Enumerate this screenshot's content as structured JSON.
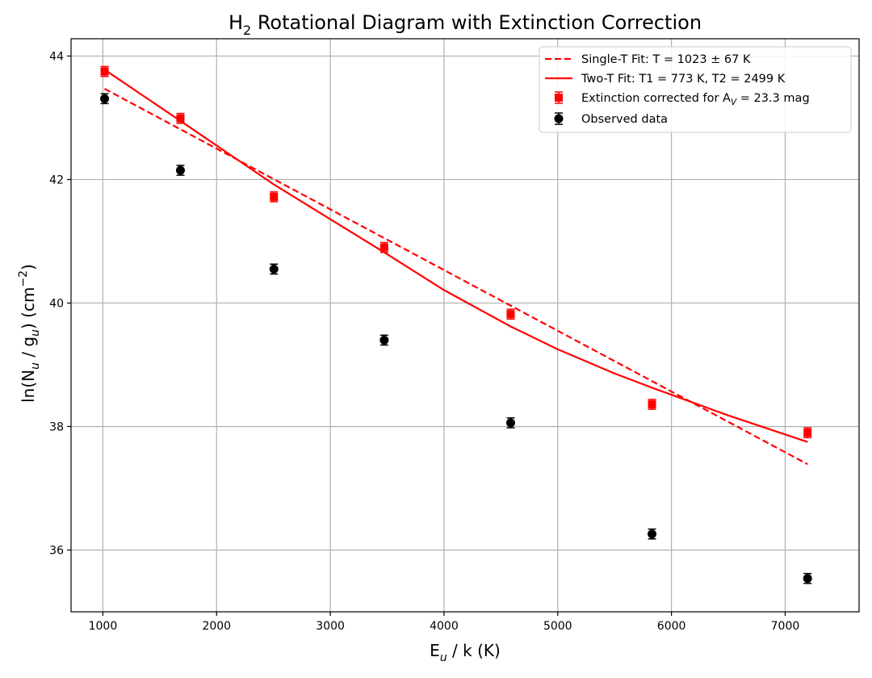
{
  "chart_data": {
    "type": "scatter",
    "title_main": "H",
    "title_sub": "2",
    "title_rest": " Rotational Diagram with Extinction Correction",
    "xlabel_main": "E",
    "xlabel_sub": "u",
    "xlabel_rest": " / k (K)",
    "ylabel_pre": "ln(N",
    "ylabel_sub1": "u",
    "ylabel_mid": " / g",
    "ylabel_sub2": "u",
    "ylabel_post": ") (cm",
    "ylabel_sup": "−2",
    "ylabel_end": ")",
    "xlim": [
      720,
      7650
    ],
    "ylim": [
      35.0,
      44.28
    ],
    "xticks": [
      1000,
      2000,
      3000,
      4000,
      5000,
      6000,
      7000
    ],
    "yticks": [
      36,
      38,
      40,
      42,
      44
    ],
    "grid": true,
    "legend_position": "top-right",
    "legend": {
      "single_fit": "Single-T Fit: T = 1023 ± 67 K",
      "two_fit": "Two-T Fit: T1 = 773 K, T2 = 2499 K",
      "corrected_pre": "Extinction corrected for A",
      "corrected_sub": "V",
      "corrected_post": " = 23.3 mag",
      "observed": "Observed data"
    },
    "series": [
      {
        "name": "Observed data",
        "color": "#000000",
        "marker": "circle",
        "x": [
          1015,
          1682,
          2504,
          3474,
          4586,
          5829,
          7197
        ],
        "y": [
          43.31,
          42.15,
          40.55,
          39.4,
          38.06,
          36.26,
          35.54
        ],
        "yerr": 0.08
      },
      {
        "name": "Extinction corrected",
        "color": "#ff0000",
        "marker": "square",
        "x": [
          1015,
          1682,
          2504,
          3474,
          4586,
          5829,
          7197
        ],
        "y": [
          43.75,
          42.99,
          41.72,
          40.9,
          39.82,
          38.36,
          37.9
        ],
        "yerr": 0.08
      },
      {
        "name": "Single-T Fit",
        "color": "#ff0000",
        "style": "dashed",
        "x": [
          1015,
          7197
        ],
        "y": [
          43.47,
          37.39
        ]
      },
      {
        "name": "Two-T Fit",
        "color": "#ff0000",
        "style": "solid",
        "x": [
          1015,
          1682,
          2504,
          3474,
          4000,
          4586,
          5000,
          5500,
          5829,
          6500,
          7197
        ],
        "y": [
          43.78,
          42.95,
          41.92,
          40.82,
          40.21,
          39.62,
          39.25,
          38.86,
          38.63,
          38.18,
          37.75
        ]
      }
    ]
  }
}
